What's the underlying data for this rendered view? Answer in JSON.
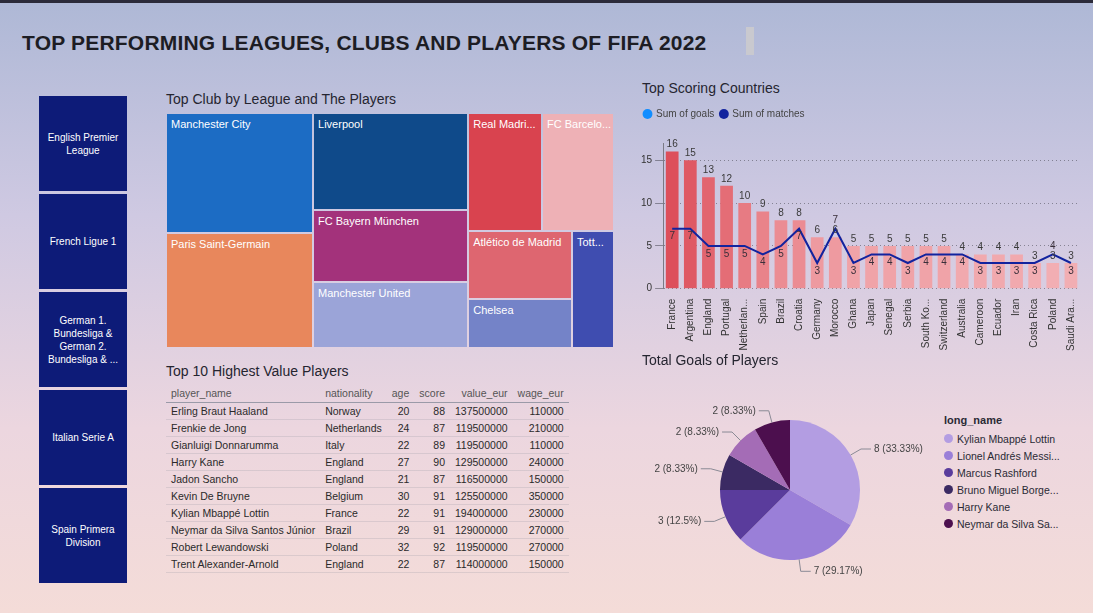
{
  "title": "TOP PERFORMING LEAGUES, CLUBS AND PLAYERS OF FIFA 2022",
  "slicer": [
    "English Premier League",
    "French Ligue 1",
    "German 1. Bundesliga & German 2. Bundesliga & ...",
    "Italian Serie A",
    "Spain Primera Division"
  ],
  "table": {
    "title": "Top 10 Highest Value Players",
    "columns": [
      "player_name",
      "nationality",
      "age",
      "score",
      "value_eur",
      "wage_eur"
    ],
    "rows": [
      [
        "Erling Braut Haaland",
        "Norway",
        20,
        88,
        137500000,
        110000
      ],
      [
        "Frenkie de Jong",
        "Netherlands",
        24,
        87,
        119500000,
        210000
      ],
      [
        "Gianluigi Donnarumma",
        "Italy",
        22,
        89,
        119500000,
        110000
      ],
      [
        "Harry Kane",
        "England",
        27,
        90,
        129500000,
        240000
      ],
      [
        "Jadon Sancho",
        "England",
        21,
        87,
        116500000,
        150000
      ],
      [
        "Kevin De Bruyne",
        "Belgium",
        30,
        91,
        125500000,
        350000
      ],
      [
        "Kylian Mbappé Lottin",
        "France",
        22,
        91,
        194000000,
        230000
      ],
      [
        "Neymar da Silva Santos Júnior",
        "Brazil",
        29,
        91,
        129000000,
        270000
      ],
      [
        "Robert Lewandowski",
        "Poland",
        32,
        92,
        119500000,
        270000
      ],
      [
        "Trent Alexander-Arnold",
        "England",
        22,
        87,
        114000000,
        150000
      ]
    ]
  },
  "chart_data": [
    {
      "type": "treemap",
      "title": "Top Club by League and The Players",
      "categories": [
        "Manchester City",
        "Paris Saint-Germain",
        "Liverpool",
        "FC Bayern München",
        "Manchester United",
        "Real Madri...",
        "FC Barcelo...",
        "Atlético de Madrid",
        "Chelsea",
        "Tott..."
      ],
      "values": [
        17.6,
        16.9,
        15.0,
        11.2,
        10.2,
        8.7,
        8.5,
        7.0,
        5.1,
        4.9
      ],
      "colors": [
        "#1c6cc4",
        "#e8875c",
        "#0f4a8a",
        "#a3327b",
        "#9ba4d8",
        "#d9434f",
        "#eeb1b6",
        "#de6670",
        "#7483c8",
        "#3f4db0"
      ]
    },
    {
      "type": "bar",
      "title": "Top Scoring Countries",
      "categories": [
        "France",
        "Argentina",
        "England",
        "Portugal",
        "Netherlan...",
        "Spain",
        "Brazil",
        "Croatia",
        "Germany",
        "Morocco",
        "Ghana",
        "Japan",
        "Senegal",
        "Serbia",
        "South Ko...",
        "Switzerland",
        "Australia",
        "Cameroon",
        "Ecuador",
        "Iran",
        "Costa Rica",
        "Poland",
        "Saudi Ara..."
      ],
      "series": [
        {
          "name": "Sum of goals",
          "type": "bar",
          "color": "#118dff",
          "colors": [
            "#dd4f5b",
            "#df5964",
            "#e2656f",
            "#e46d76",
            "#e77b83",
            "#e9838a",
            "#eb8c93",
            "#eb8c93",
            "#ee9aa0",
            "#ee9aa0",
            "#f0a3a8",
            "#f0a3a8",
            "#f0a3a8",
            "#f0a3a8",
            "#f0a3a8",
            "#f0a3a8",
            "#f1a9ae",
            "#f1a9ae",
            "#f1a9ae",
            "#f1a9ae",
            "#f2aeb3",
            "#f2aeb3",
            "#f2aeb3"
          ],
          "values": [
            16,
            15,
            13,
            12,
            10,
            9,
            8,
            8,
            6,
            6,
            5,
            5,
            5,
            5,
            5,
            5,
            4,
            4,
            4,
            4,
            3,
            3,
            3
          ]
        },
        {
          "name": "Sum of matches",
          "type": "line",
          "color": "#12239e",
          "values": [
            7,
            7,
            5,
            5,
            5,
            4,
            5,
            7,
            3,
            7,
            3,
            4,
            4,
            3,
            4,
            4,
            4,
            3,
            3,
            3,
            3,
            4,
            3
          ]
        }
      ],
      "ylim": [
        0,
        17
      ],
      "yticks": [
        0,
        5,
        10,
        15
      ],
      "grid": true,
      "legend": "top-left",
      "data_labels": true
    },
    {
      "type": "pie",
      "title": "Total Goals of Players",
      "legend_title": "long_name",
      "categories": [
        "Kylian Mbappé Lottin",
        "Lionel Andrés Messi...",
        "Marcus Rashford",
        "Bruno Miguel Borge...",
        "Harry Kane",
        "Neymar da Silva Sa..."
      ],
      "values": [
        8,
        7,
        3,
        2,
        2,
        2
      ],
      "value_labels": [
        "8 (33.33%)",
        "7 (29.17%)",
        "3 (12.5%)",
        "2 (8.33%)",
        "2 (8.33%)",
        "2 (8.33%)"
      ],
      "colors": [
        "#b39de2",
        "#9a7fd8",
        "#5a3c9c",
        "#3b2a63",
        "#a46cb6",
        "#4c0f4e"
      ],
      "legend": "right",
      "data_labels": true
    }
  ]
}
